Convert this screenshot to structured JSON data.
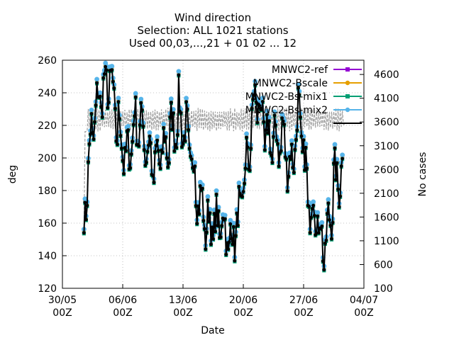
{
  "chart_data": {
    "type": "line",
    "title": [
      "Wind direction",
      "Selection: ALL    1021 stations",
      "Used 00,03,...,21 + 01 02 ... 12"
    ],
    "xlabel": "Date",
    "ylabel": "deg",
    "y2label": "No cases",
    "x_range": [
      "2024-05-30T00:00",
      "2024-07-04T00:00"
    ],
    "x_ticks": [
      {
        "date": "2024-05-30",
        "label": [
          "30/05",
          "00Z"
        ]
      },
      {
        "date": "2024-06-06",
        "label": [
          "06/06",
          "00Z"
        ]
      },
      {
        "date": "2024-06-13",
        "label": [
          "13/06",
          "00Z"
        ]
      },
      {
        "date": "2024-06-20",
        "label": [
          "20/06",
          "00Z"
        ]
      },
      {
        "date": "2024-06-27",
        "label": [
          "27/06",
          "00Z"
        ]
      },
      {
        "date": "2024-07-04",
        "label": [
          "04/07",
          "00Z"
        ]
      }
    ],
    "ylim": [
      120,
      260
    ],
    "y_ticks": [
      120,
      140,
      160,
      180,
      200,
      220,
      240,
      260
    ],
    "y2lim": [
      100,
      4900
    ],
    "y2_ticks": [
      100,
      600,
      1100,
      1600,
      2100,
      2600,
      3100,
      3600,
      4100,
      4600
    ],
    "grid": true,
    "legend_position": "top-right",
    "series": [
      {
        "name": "MNWC2-ref",
        "color": "#9400d3",
        "marker": "square"
      },
      {
        "name": "MNWC2-Bscale",
        "color": "#e69f00",
        "marker": "circle"
      },
      {
        "name": "MNWC2-Bs-mix1",
        "color": "#009e73",
        "marker": "square"
      },
      {
        "name": "MNWC2-Bs-mix2",
        "color": "#56b4e9",
        "marker": "circle"
      },
      {
        "name": "",
        "color": "#000000",
        "marker": "circle"
      }
    ],
    "cases_series": {
      "color": "#a0a0a0",
      "dash": "dashed"
    },
    "data_x_start": "2024-06-01T12:00",
    "data_x_end": "2024-07-01T12:00",
    "daily_mean_deg": [
      165,
      220,
      238,
      246,
      218,
      200,
      225,
      215,
      192,
      200,
      212,
      228,
      215,
      185,
      160,
      155,
      160,
      148,
      165,
      200,
      240,
      212,
      207,
      213,
      195,
      230,
      175,
      163,
      140,
      182,
      195,
      200
    ],
    "cases_daily": {
      "first": 1400,
      "typical_low": 3400,
      "typical_high": 3900,
      "final": 3550
    }
  }
}
